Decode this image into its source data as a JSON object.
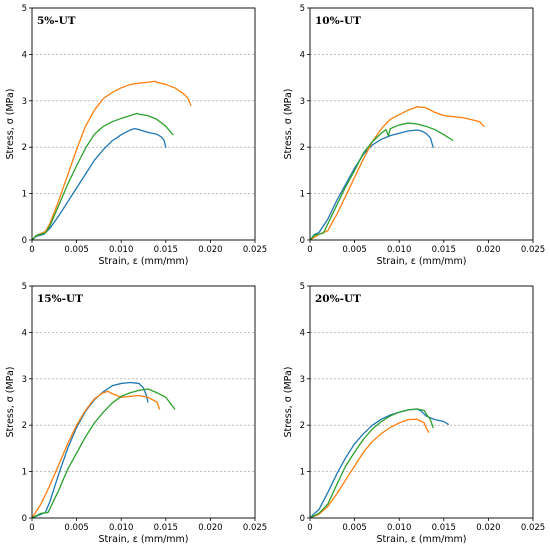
{
  "chart_data": [
    {
      "type": "line",
      "title": "5%-UT",
      "xlabel": "Strain, ε (mm/mm)",
      "ylabel": "Stress, σ (MPa)",
      "xlim": [
        0,
        0.025
      ],
      "ylim": [
        0,
        5
      ],
      "xticks": [
        "0",
        "0.005",
        "0.010",
        "0.015",
        "0.020",
        "0.025"
      ],
      "yticks": [
        "0",
        "1",
        "2",
        "3",
        "4",
        "5"
      ],
      "grid": "horizontal dashed",
      "series": [
        {
          "color": "#1f77b4",
          "x": [
            0,
            0.0005,
            0.0013,
            0.002,
            0.003,
            0.004,
            0.005,
            0.006,
            0.007,
            0.008,
            0.009,
            0.0095,
            0.01,
            0.0105,
            0.011,
            0.0115,
            0.012,
            0.0125,
            0.013,
            0.014,
            0.0145,
            0.0148,
            0.015
          ],
          "y": [
            0,
            0.08,
            0.12,
            0.25,
            0.52,
            0.82,
            1.12,
            1.42,
            1.72,
            1.95,
            2.14,
            2.2,
            2.27,
            2.32,
            2.37,
            2.4,
            2.38,
            2.35,
            2.32,
            2.28,
            2.22,
            2.15,
            2.0
          ]
        },
        {
          "color": "#ff7f0e",
          "x": [
            0,
            0.0005,
            0.0015,
            0.002,
            0.003,
            0.004,
            0.005,
            0.006,
            0.007,
            0.008,
            0.009,
            0.01,
            0.011,
            0.012,
            0.013,
            0.0138,
            0.014,
            0.015,
            0.016,
            0.017,
            0.0175,
            0.0178
          ],
          "y": [
            0,
            0.1,
            0.18,
            0.35,
            0.85,
            1.4,
            1.95,
            2.45,
            2.8,
            3.05,
            3.18,
            3.28,
            3.35,
            3.38,
            3.4,
            3.42,
            3.4,
            3.35,
            3.28,
            3.15,
            3.05,
            2.9
          ]
        },
        {
          "color": "#2ca02c",
          "x": [
            0,
            0.0005,
            0.0015,
            0.002,
            0.003,
            0.004,
            0.005,
            0.006,
            0.007,
            0.008,
            0.009,
            0.01,
            0.011,
            0.0118,
            0.012,
            0.013,
            0.014,
            0.015,
            0.0158
          ],
          "y": [
            0,
            0.1,
            0.15,
            0.3,
            0.75,
            1.2,
            1.6,
            1.98,
            2.28,
            2.45,
            2.55,
            2.62,
            2.68,
            2.73,
            2.71,
            2.68,
            2.6,
            2.45,
            2.27
          ]
        }
      ]
    },
    {
      "type": "line",
      "title": "10%-UT",
      "xlabel": "Strain, ε (mm/mm)",
      "ylabel": "Stress, σ (MPa)",
      "xlim": [
        0,
        0.025
      ],
      "ylim": [
        0,
        5
      ],
      "xticks": [
        "0",
        "0.005",
        "0.010",
        "0.015",
        "0.020",
        "0.025"
      ],
      "yticks": [
        "0",
        "1",
        "2",
        "3",
        "4",
        "5"
      ],
      "grid": "horizontal dashed",
      "series": [
        {
          "color": "#1f77b4",
          "x": [
            0,
            0.0005,
            0.001,
            0.002,
            0.003,
            0.004,
            0.005,
            0.006,
            0.007,
            0.008,
            0.009,
            0.01,
            0.011,
            0.012,
            0.0125,
            0.013,
            0.0135,
            0.0138
          ],
          "y": [
            0,
            0.12,
            0.16,
            0.45,
            0.85,
            1.2,
            1.55,
            1.85,
            2.05,
            2.17,
            2.25,
            2.3,
            2.35,
            2.37,
            2.35,
            2.3,
            2.2,
            2.0
          ]
        },
        {
          "color": "#ff7f0e",
          "x": [
            0,
            0.001,
            0.002,
            0.003,
            0.004,
            0.005,
            0.006,
            0.007,
            0.008,
            0.009,
            0.01,
            0.011,
            0.012,
            0.013,
            0.014,
            0.015,
            0.016,
            0.017,
            0.018,
            0.019,
            0.0195
          ],
          "y": [
            0,
            0.12,
            0.2,
            0.55,
            0.95,
            1.35,
            1.75,
            2.12,
            2.4,
            2.6,
            2.7,
            2.8,
            2.87,
            2.85,
            2.75,
            2.68,
            2.66,
            2.64,
            2.6,
            2.55,
            2.45
          ]
        },
        {
          "color": "#2ca02c",
          "x": [
            0,
            0.0005,
            0.0015,
            0.002,
            0.003,
            0.004,
            0.005,
            0.006,
            0.007,
            0.008,
            0.0085,
            0.0088,
            0.009,
            0.01,
            0.011,
            0.012,
            0.013,
            0.014,
            0.015,
            0.016
          ],
          "y": [
            0,
            0.1,
            0.15,
            0.35,
            0.75,
            1.15,
            1.5,
            1.88,
            2.12,
            2.3,
            2.38,
            2.25,
            2.4,
            2.48,
            2.52,
            2.5,
            2.45,
            2.38,
            2.27,
            2.15
          ]
        }
      ]
    },
    {
      "type": "line",
      "title": "15%-UT",
      "xlabel": "Strain, ε (mm/mm)",
      "ylabel": "Stress, σ (MPa)",
      "xlim": [
        0,
        0.025
      ],
      "ylim": [
        0,
        5
      ],
      "xticks": [
        "0",
        "0.005",
        "0.010",
        "0.015",
        "0.020",
        "0.025"
      ],
      "yticks": [
        "0",
        "1",
        "2",
        "3",
        "4",
        "5"
      ],
      "grid": "horizontal dashed",
      "series": [
        {
          "color": "#1f77b4",
          "x": [
            0,
            0.001,
            0.0015,
            0.002,
            0.003,
            0.004,
            0.005,
            0.006,
            0.007,
            0.008,
            0.009,
            0.01,
            0.011,
            0.012,
            0.0125,
            0.0128,
            0.013
          ],
          "y": [
            0,
            0.08,
            0.12,
            0.35,
            0.95,
            1.5,
            1.95,
            2.3,
            2.55,
            2.72,
            2.85,
            2.9,
            2.92,
            2.9,
            2.8,
            2.65,
            2.5
          ]
        },
        {
          "color": "#ff7f0e",
          "x": [
            0,
            0.001,
            0.002,
            0.003,
            0.004,
            0.005,
            0.006,
            0.007,
            0.008,
            0.0085,
            0.009,
            0.01,
            0.011,
            0.012,
            0.013,
            0.014,
            0.0143
          ],
          "y": [
            0,
            0.3,
            0.7,
            1.15,
            1.6,
            2.0,
            2.32,
            2.57,
            2.7,
            2.73,
            2.68,
            2.6,
            2.62,
            2.64,
            2.6,
            2.5,
            2.35
          ]
        },
        {
          "color": "#2ca02c",
          "x": [
            0,
            0.001,
            0.0018,
            0.002,
            0.003,
            0.004,
            0.005,
            0.006,
            0.007,
            0.008,
            0.009,
            0.01,
            0.011,
            0.012,
            0.013,
            0.014,
            0.015,
            0.016
          ],
          "y": [
            0,
            0.1,
            0.12,
            0.2,
            0.6,
            1.05,
            1.4,
            1.75,
            2.05,
            2.28,
            2.48,
            2.62,
            2.7,
            2.75,
            2.78,
            2.7,
            2.6,
            2.35
          ]
        }
      ]
    },
    {
      "type": "line",
      "title": "20%-UT",
      "xlabel": "Strain, ε (mm/mm)",
      "ylabel": "Stress, σ (MPa)",
      "xlim": [
        0,
        0.025
      ],
      "ylim": [
        0,
        5
      ],
      "xticks": [
        "0",
        "0.005",
        "0.010",
        "0.015",
        "0.020",
        "0.025"
      ],
      "yticks": [
        "0",
        "1",
        "2",
        "3",
        "4",
        "5"
      ],
      "grid": "horizontal dashed",
      "series": [
        {
          "color": "#1f77b4",
          "x": [
            0,
            0.0005,
            0.001,
            0.002,
            0.003,
            0.004,
            0.005,
            0.006,
            0.007,
            0.008,
            0.009,
            0.01,
            0.011,
            0.012,
            0.0125,
            0.013,
            0.014,
            0.015,
            0.0155
          ],
          "y": [
            0,
            0.1,
            0.18,
            0.55,
            0.95,
            1.3,
            1.6,
            1.82,
            2.0,
            2.13,
            2.22,
            2.28,
            2.33,
            2.35,
            2.3,
            2.2,
            2.12,
            2.08,
            2.02
          ]
        },
        {
          "color": "#ff7f0e",
          "x": [
            0,
            0.001,
            0.002,
            0.003,
            0.004,
            0.005,
            0.006,
            0.007,
            0.008,
            0.009,
            0.01,
            0.011,
            0.012,
            0.0128,
            0.013,
            0.0133
          ],
          "y": [
            0,
            0.08,
            0.25,
            0.52,
            0.82,
            1.12,
            1.42,
            1.65,
            1.82,
            1.95,
            2.05,
            2.12,
            2.13,
            2.05,
            1.95,
            1.85
          ]
        },
        {
          "color": "#2ca02c",
          "x": [
            0,
            0.001,
            0.002,
            0.003,
            0.004,
            0.005,
            0.006,
            0.007,
            0.008,
            0.009,
            0.01,
            0.011,
            0.012,
            0.0128,
            0.013,
            0.0135,
            0.0138
          ],
          "y": [
            0,
            0.1,
            0.3,
            0.72,
            1.12,
            1.42,
            1.7,
            1.92,
            2.08,
            2.2,
            2.28,
            2.33,
            2.35,
            2.32,
            2.25,
            2.12,
            1.95
          ]
        }
      ]
    }
  ]
}
